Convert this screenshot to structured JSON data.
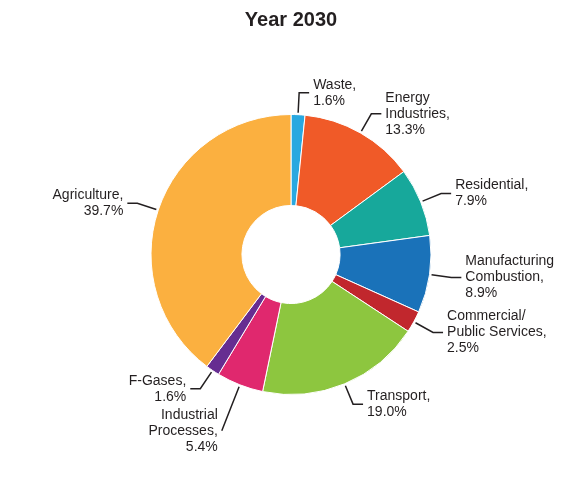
{
  "chart_data": {
    "type": "doughnut",
    "title": "Year 2030",
    "categories": [
      "Waste,",
      "Energy Industries,",
      "Residential,",
      "Manufacturing Combustion,",
      "Commercial/Public Services,",
      "Transport,",
      "Industrial Processes,",
      "F-Gases,",
      "Agriculture,"
    ],
    "values": [
      1.6,
      13.3,
      7.9,
      8.9,
      2.5,
      19.0,
      5.4,
      1.6,
      39.7
    ],
    "value_labels": [
      "1.6%",
      "13.3%",
      "7.9%",
      "8.9%",
      "2.5%",
      "19.0%",
      "5.4%",
      "1.6%",
      "39.7%"
    ],
    "colors": [
      "#29a8e0",
      "#f05a28",
      "#17a89b",
      "#1a72b9",
      "#c1272d",
      "#8dc63f",
      "#e0286e",
      "#662d91",
      "#fbb040"
    ],
    "data_labels": true
  }
}
